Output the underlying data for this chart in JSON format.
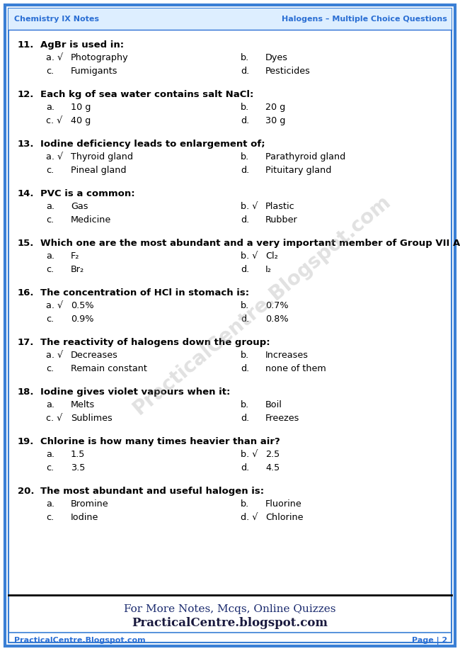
{
  "header_left": "Chemistry IX Notes",
  "header_right": "Halogens – Multiple Choice Questions",
  "footer_left": "PracticalCentre.Blogspot.com",
  "footer_right": "Page | 2",
  "footer_note1": "For More Notes, Mcqs, Online Quizzes",
  "footer_note2": "PracticalCentre.blogspot.com",
  "header_color": "#2b6fd4",
  "border_color": "#3a7fd5",
  "bg_color": "#ffffff",
  "text_color": "#000000",
  "questions": [
    {
      "num": "11.",
      "q": "AgBr is used in:",
      "options": [
        {
          "label": "a. √",
          "text": "Photography",
          "col": 0
        },
        {
          "label": "b.",
          "text": "Dyes",
          "col": 1
        },
        {
          "label": "c.",
          "text": "Fumigants",
          "col": 0
        },
        {
          "label": "d.",
          "text": "Pesticides",
          "col": 1
        }
      ]
    },
    {
      "num": "12.",
      "q": "Each kg of sea water contains salt NaCl:",
      "options": [
        {
          "label": "a.",
          "text": "10 g",
          "col": 0
        },
        {
          "label": "b.",
          "text": "20 g",
          "col": 1
        },
        {
          "label": "c. √",
          "text": "40 g",
          "col": 0
        },
        {
          "label": "d.",
          "text": "30 g",
          "col": 1
        }
      ]
    },
    {
      "num": "13.",
      "q": "Iodine deficiency leads to enlargement of;",
      "options": [
        {
          "label": "a. √",
          "text": "Thyroid gland",
          "col": 0
        },
        {
          "label": "b.",
          "text": "Parathyroid gland",
          "col": 1
        },
        {
          "label": "c.",
          "text": "Pineal gland",
          "col": 0
        },
        {
          "label": "d.",
          "text": "Pituitary gland",
          "col": 1
        }
      ]
    },
    {
      "num": "14.",
      "q": "PVC is a common:",
      "options": [
        {
          "label": "a.",
          "text": "Gas",
          "col": 0
        },
        {
          "label": "b. √",
          "text": "Plastic",
          "col": 1
        },
        {
          "label": "c.",
          "text": "Medicine",
          "col": 0
        },
        {
          "label": "d.",
          "text": "Rubber",
          "col": 1
        }
      ]
    },
    {
      "num": "15.",
      "q": "Which one are the most abundant and a very important member of Group VII A.?",
      "options": [
        {
          "label": "a.",
          "text": "F₂",
          "col": 0
        },
        {
          "label": "b. √",
          "text": "Cl₂",
          "col": 1
        },
        {
          "label": "c.",
          "text": "Br₂",
          "col": 0
        },
        {
          "label": "d.",
          "text": "I₂",
          "col": 1
        }
      ]
    },
    {
      "num": "16.",
      "q": "The concentration of HCl in stomach is:",
      "options": [
        {
          "label": "a. √",
          "text": "0.5%",
          "col": 0
        },
        {
          "label": "b.",
          "text": "0.7%",
          "col": 1
        },
        {
          "label": "c.",
          "text": "0.9%",
          "col": 0
        },
        {
          "label": "d.",
          "text": "0.8%",
          "col": 1
        }
      ]
    },
    {
      "num": "17.",
      "q": "The reactivity of halogens down the group:",
      "options": [
        {
          "label": "a. √",
          "text": "Decreases",
          "col": 0
        },
        {
          "label": "b.",
          "text": "Increases",
          "col": 1
        },
        {
          "label": "c.",
          "text": "Remain constant",
          "col": 0
        },
        {
          "label": "d.",
          "text": "none of them",
          "col": 1
        }
      ]
    },
    {
      "num": "18.",
      "q": "Iodine gives violet vapours when it:",
      "options": [
        {
          "label": "a.",
          "text": "Melts",
          "col": 0
        },
        {
          "label": "b.",
          "text": "Boil",
          "col": 1
        },
        {
          "label": "c. √",
          "text": "Sublimes",
          "col": 0
        },
        {
          "label": "d.",
          "text": "Freezes",
          "col": 1
        }
      ]
    },
    {
      "num": "19.",
      "q": "Chlorine is how many times heavier than air?",
      "options": [
        {
          "label": "a.",
          "text": "1.5",
          "col": 0
        },
        {
          "label": "b. √",
          "text": "2.5",
          "col": 1
        },
        {
          "label": "c.",
          "text": "3.5",
          "col": 0
        },
        {
          "label": "d.",
          "text": "4.5",
          "col": 1
        }
      ]
    },
    {
      "num": "20.",
      "q": "The most abundant and useful halogen is:",
      "options": [
        {
          "label": "a.",
          "text": "Bromine",
          "col": 0
        },
        {
          "label": "b.",
          "text": "Fluorine",
          "col": 1
        },
        {
          "label": "c.",
          "text": "Iodine",
          "col": 0
        },
        {
          "label": "d. √",
          "text": "Chlorine",
          "col": 1
        }
      ]
    }
  ]
}
